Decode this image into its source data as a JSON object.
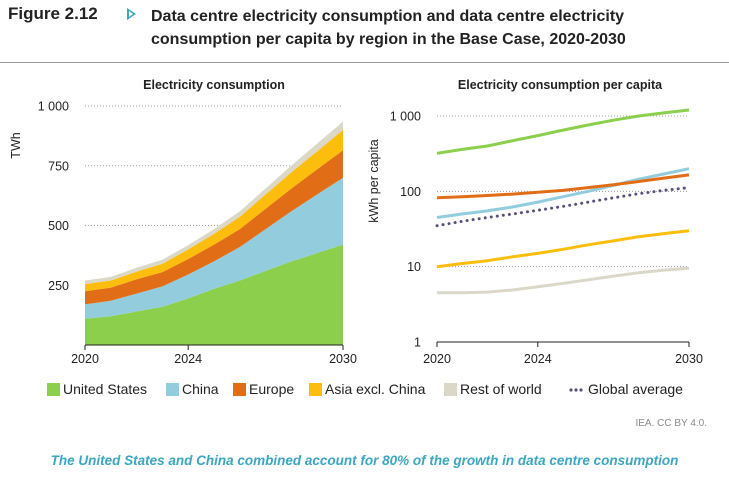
{
  "figure": {
    "label": "Figure 2.12",
    "title": "Data centre electricity consumption and data centre electricity consumption per capita by region in the Base Case, 2020-2030",
    "source": "IEA. CC BY 4.0.",
    "caption": "The United States and China combined account for 80% of the growth in data centre consumption"
  },
  "colors": {
    "United States": "#8ccf4d",
    "China": "#93cddd",
    "Europe": "#e26d17",
    "Asia excl. China": "#fcbd0c",
    "Rest of world": "#dcd8c8",
    "Global average": "#5b4f7a"
  },
  "legend": [
    {
      "key": "us",
      "label": "United States",
      "type": "box"
    },
    {
      "key": "cn",
      "label": "China",
      "type": "box"
    },
    {
      "key": "eu",
      "label": "Europe",
      "type": "box"
    },
    {
      "key": "as",
      "label": "Asia excl. China",
      "type": "box"
    },
    {
      "key": "rw",
      "label": "Rest of world",
      "type": "box"
    },
    {
      "key": "ga",
      "label": "Global average",
      "type": "dots"
    }
  ],
  "chart_data": [
    {
      "type": "area",
      "title": "Electricity consumption",
      "ylabel": "TWh",
      "xlabel": "",
      "x": [
        2020,
        2021,
        2022,
        2023,
        2024,
        2025,
        2026,
        2027,
        2028,
        2029,
        2030
      ],
      "xticks": [
        "2020",
        "2024",
        "2030"
      ],
      "yticks": [
        "250",
        "500",
        "750",
        "1 000"
      ],
      "ylim": [
        0,
        1000
      ],
      "grid": "dotted",
      "stacked": true,
      "series": [
        {
          "name": "United States",
          "values": [
            110,
            120,
            140,
            160,
            195,
            235,
            270,
            310,
            350,
            385,
            420
          ]
        },
        {
          "name": "China",
          "values": [
            60,
            65,
            75,
            85,
            100,
            115,
            140,
            175,
            210,
            245,
            280
          ]
        },
        {
          "name": "Europe",
          "values": [
            55,
            55,
            60,
            60,
            65,
            70,
            75,
            85,
            95,
            105,
            115
          ]
        },
        {
          "name": "Asia excl. China",
          "values": [
            30,
            30,
            32,
            35,
            40,
            45,
            52,
            60,
            68,
            76,
            85
          ]
        },
        {
          "name": "Rest of world",
          "values": [
            15,
            15,
            16,
            17,
            18,
            20,
            22,
            25,
            28,
            32,
            35
          ]
        }
      ]
    },
    {
      "type": "line",
      "title": "Electricity consumption per capita",
      "ylabel": "kWh per capita",
      "xlabel": "",
      "x": [
        2020,
        2021,
        2022,
        2023,
        2024,
        2025,
        2026,
        2027,
        2028,
        2029,
        2030
      ],
      "xticks": [
        "2020",
        "2024",
        "2030"
      ],
      "yticks": [
        "1",
        "10",
        "100",
        "1 000"
      ],
      "ylim": [
        1,
        1000
      ],
      "yscale": "log",
      "grid": "dotted",
      "series": [
        {
          "name": "United States",
          "values": [
            320,
            360,
            400,
            470,
            550,
            650,
            760,
            880,
            1000,
            1100,
            1200
          ]
        },
        {
          "name": "China",
          "values": [
            45,
            50,
            55,
            62,
            72,
            85,
            100,
            120,
            145,
            170,
            200
          ]
        },
        {
          "name": "Europe",
          "values": [
            82,
            85,
            88,
            92,
            97,
            103,
            112,
            122,
            135,
            150,
            165
          ]
        },
        {
          "name": "Asia excl. China",
          "values": [
            10,
            11,
            12,
            13.5,
            15,
            17,
            19.5,
            22,
            25,
            27.5,
            30
          ]
        },
        {
          "name": "Rest of world",
          "values": [
            4.5,
            4.5,
            4.6,
            4.9,
            5.4,
            6.0,
            6.7,
            7.5,
            8.3,
            9.0,
            9.5
          ]
        },
        {
          "name": "Global average",
          "values": [
            35,
            40,
            45,
            50,
            56,
            63,
            72,
            82,
            93,
            103,
            112
          ]
        }
      ]
    }
  ]
}
